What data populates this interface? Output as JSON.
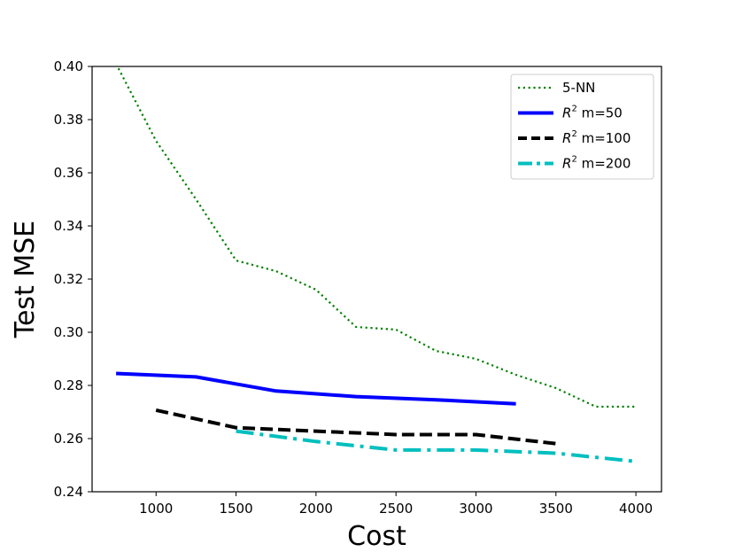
{
  "chart_data": {
    "type": "line",
    "title": "",
    "xlabel": "Cost",
    "ylabel": "Test MSE",
    "xlim": [
      600,
      4160
    ],
    "ylim": [
      0.24,
      0.4
    ],
    "xticks": [
      1000,
      1500,
      2000,
      2500,
      3000,
      3500,
      4000
    ],
    "xtick_labels": [
      "1000",
      "1500",
      "2000",
      "2500",
      "3000",
      "3500",
      "4000"
    ],
    "yticks": [
      0.24,
      0.26,
      0.28,
      0.3,
      0.32,
      0.34,
      0.36,
      0.38,
      0.4
    ],
    "ytick_labels": [
      "0.24",
      "0.26",
      "0.28",
      "0.30",
      "0.32",
      "0.34",
      "0.36",
      "0.38",
      "0.40"
    ],
    "grid": false,
    "legend_position": "top-right",
    "series": [
      {
        "name": "5-NN",
        "label_main": "5-NN",
        "label_sup": "",
        "label_suffix": "",
        "color": "#008000",
        "style": "dotted",
        "x": [
          750,
          1000,
          1250,
          1500,
          1750,
          2000,
          2250,
          2500,
          2750,
          3000,
          3250,
          3500,
          3750,
          4000
        ],
        "y": [
          0.401,
          0.372,
          0.35,
          0.327,
          0.323,
          0.316,
          0.302,
          0.301,
          0.293,
          0.29,
          0.284,
          0.279,
          0.272,
          0.272
        ]
      },
      {
        "name": "R^2 m=50",
        "label_main": "R",
        "label_sup": "2",
        "label_suffix": " m=50",
        "color": "#0000ff",
        "style": "solid",
        "x": [
          750,
          1250,
          1750,
          2250,
          2750,
          3250
        ],
        "y": [
          0.2845,
          0.2832,
          0.2779,
          0.2758,
          0.2746,
          0.2731
        ]
      },
      {
        "name": "R^2 m=100",
        "label_main": "R",
        "label_sup": "2",
        "label_suffix": " m=100",
        "color": "#000000",
        "style": "dashed",
        "x": [
          1000,
          1500,
          2000,
          2500,
          3000,
          3500
        ],
        "y": [
          0.2707,
          0.2641,
          0.2628,
          0.2615,
          0.2615,
          0.2581
        ]
      },
      {
        "name": "R^2 m=200",
        "label_main": "R",
        "label_sup": "2",
        "label_suffix": " m=200",
        "color": "#00bfbf",
        "style": "dashdot",
        "x": [
          1500,
          2000,
          2500,
          3000,
          3500,
          4000
        ],
        "y": [
          0.2628,
          0.2589,
          0.2557,
          0.2557,
          0.2545,
          0.2514
        ]
      }
    ]
  }
}
